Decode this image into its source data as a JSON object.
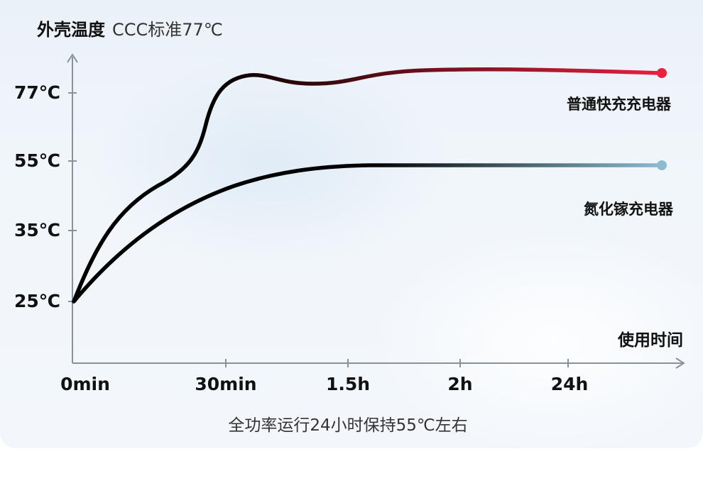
{
  "title": "外壳温度",
  "subtitle": "CCC标准77℃",
  "caption": "全功率运行24小时保持55℃左右",
  "colors": {
    "fast_charger_end": "#e8213f",
    "gan_charger_end": "#8cbcd2",
    "curve_start": "#000000",
    "axis": "#8a9299"
  },
  "chart_data": {
    "type": "line",
    "title": "外壳温度",
    "subtitle": "CCC标准77℃",
    "xlabel": "使用时间",
    "ylabel": "",
    "y_unit": "℃",
    "y_ticks": [
      "77℃",
      "55℃",
      "35℃",
      "25℃"
    ],
    "y_tick_values": [
      77,
      55,
      35,
      25
    ],
    "x_ticks": [
      "0min",
      "30min",
      "1.5h",
      "2h",
      "24h"
    ],
    "grid": false,
    "legend": "inline-right",
    "series": [
      {
        "name": "普通快充充电器",
        "color": "#e8213f",
        "points": [
          {
            "x": "0min",
            "y": 25
          },
          {
            "x": "30min",
            "y": 75
          },
          {
            "x": "1.5h",
            "y": 79
          },
          {
            "x": "2h",
            "y": 81
          },
          {
            "x": "24h",
            "y": 81
          }
        ]
      },
      {
        "name": "氮化镓充电器",
        "color": "#8cbcd2",
        "points": [
          {
            "x": "0min",
            "y": 25
          },
          {
            "x": "30min",
            "y": 47
          },
          {
            "x": "1.5h",
            "y": 54
          },
          {
            "x": "2h",
            "y": 54
          },
          {
            "x": "24h",
            "y": 54
          }
        ]
      }
    ]
  }
}
